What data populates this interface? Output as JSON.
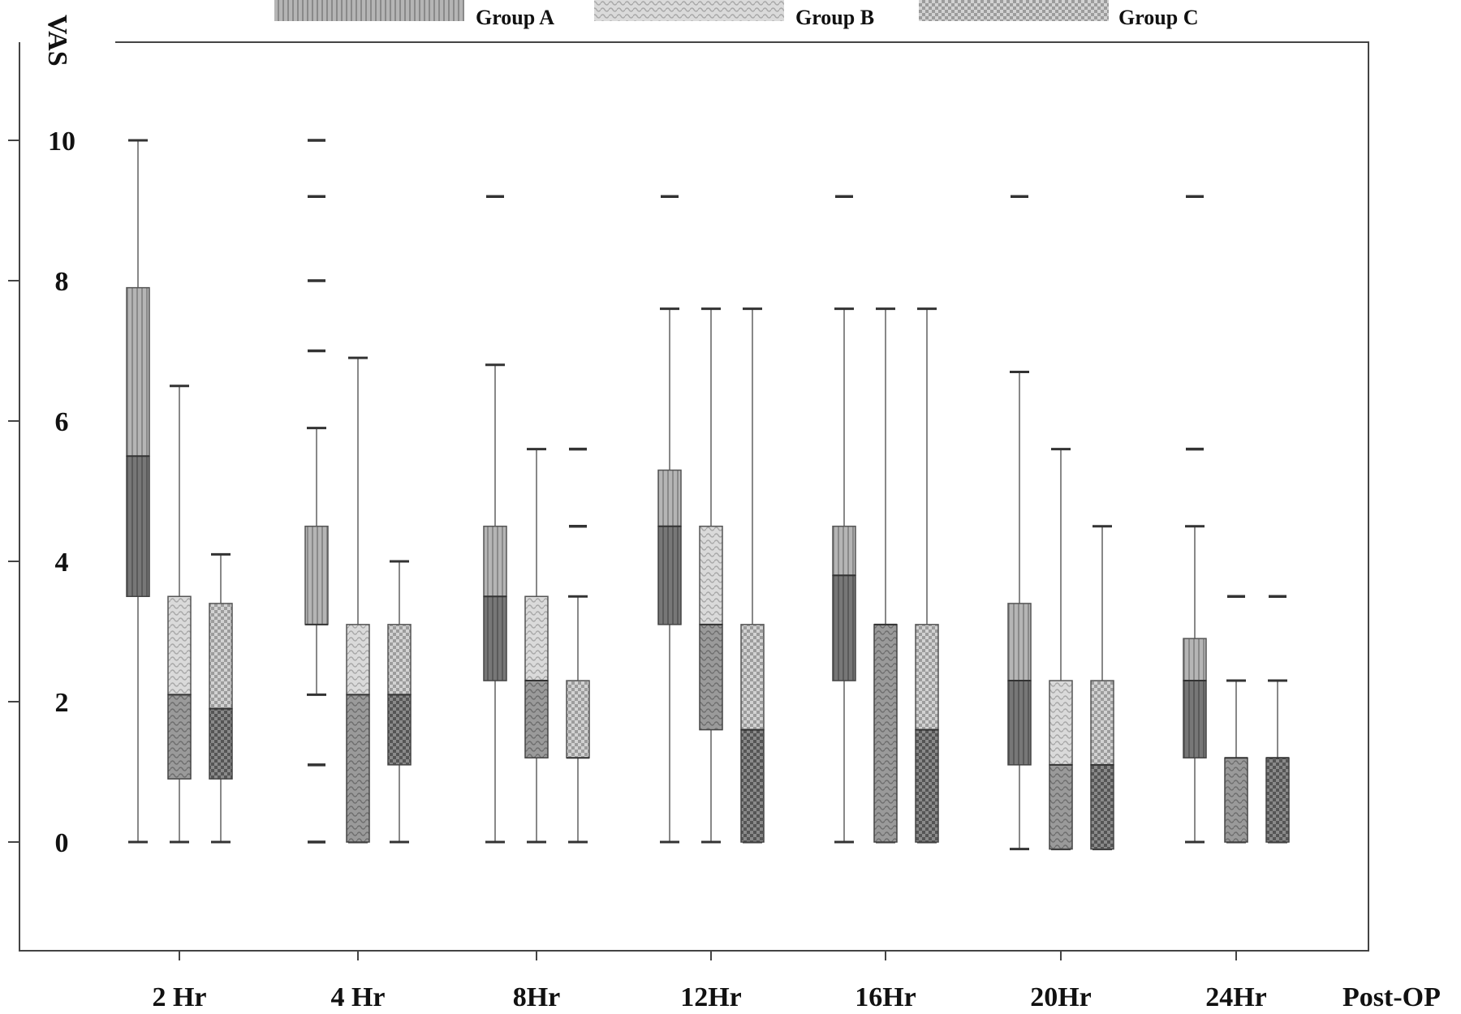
{
  "chart_data": {
    "type": "boxplot",
    "ylabel": "VAS",
    "xlabel": "Post-OP",
    "ylim": [
      -1.4,
      10.9
    ],
    "yticks": [
      0,
      2,
      4,
      6,
      8,
      10
    ],
    "yticklabels": [
      "0",
      "2",
      "4",
      "6",
      "8",
      "10"
    ],
    "categories": [
      "2 Hr",
      "4 Hr",
      "8Hr",
      "12Hr",
      "16Hr",
      "20Hr",
      "24Hr"
    ],
    "legend_position": "top",
    "series": [
      {
        "name": "Group A",
        "color": "#9a9a9a",
        "median_color": "#6e6e6e",
        "pattern": "vertical-stripes",
        "boxes": [
          {
            "min": 0,
            "q1": 3.5,
            "median": 5.5,
            "q3": 7.9,
            "max": 10,
            "outliers": []
          },
          {
            "min": 2.1,
            "q1": 3.1,
            "median": 3.1,
            "q3": 4.5,
            "max": 5.9,
            "outliers": [
              0,
              1.1,
              7.0,
              8.0,
              9.2,
              10.0
            ]
          },
          {
            "min": 0,
            "q1": 2.3,
            "median": 3.5,
            "q3": 4.5,
            "max": 6.8,
            "outliers": [
              9.2
            ]
          },
          {
            "min": 0,
            "q1": 3.1,
            "median": 4.5,
            "q3": 5.3,
            "max": 7.6,
            "outliers": [
              9.2
            ]
          },
          {
            "min": 0,
            "q1": 2.3,
            "median": 3.8,
            "q3": 4.5,
            "max": 7.6,
            "outliers": [
              9.2
            ]
          },
          {
            "min": -0.1,
            "q1": 1.1,
            "median": 2.3,
            "q3": 3.4,
            "max": 6.7,
            "outliers": [
              9.2
            ]
          },
          {
            "min": 0,
            "q1": 1.2,
            "median": 2.3,
            "q3": 2.9,
            "max": 4.5,
            "outliers": [
              5.6,
              9.2
            ]
          }
        ]
      },
      {
        "name": "Group B",
        "color": "#c4c4c4",
        "median_color": "#8c8c8c",
        "pattern": "wave",
        "boxes": [
          {
            "min": 0,
            "q1": 0.9,
            "median": 2.1,
            "q3": 3.5,
            "max": 6.5,
            "outliers": []
          },
          {
            "min": 0,
            "q1": 0,
            "median": 2.1,
            "q3": 3.1,
            "max": 6.9,
            "outliers": []
          },
          {
            "min": 0,
            "q1": 1.2,
            "median": 2.3,
            "q3": 3.5,
            "max": 5.6,
            "outliers": []
          },
          {
            "min": 0,
            "q1": 1.6,
            "median": 3.1,
            "q3": 4.5,
            "max": 7.6,
            "outliers": []
          },
          {
            "min": 0,
            "q1": 0,
            "median": 3.1,
            "q3": 3.1,
            "max": 7.6,
            "outliers": []
          },
          {
            "min": -0.1,
            "q1": -0.1,
            "median": 1.1,
            "q3": 2.3,
            "max": 5.6,
            "outliers": []
          },
          {
            "min": 0,
            "q1": 0,
            "median": 1.2,
            "q3": 1.2,
            "max": 2.3,
            "outliers": [
              3.5
            ]
          }
        ]
      },
      {
        "name": "Group C",
        "color": "#b0b0b0",
        "median_color": "#777777",
        "pattern": "checker",
        "boxes": [
          {
            "min": 0,
            "q1": 0.9,
            "median": 1.9,
            "q3": 3.4,
            "max": 4.1,
            "outliers": []
          },
          {
            "min": 0,
            "q1": 1.1,
            "median": 2.1,
            "q3": 3.1,
            "max": 4.0,
            "outliers": []
          },
          {
            "min": 0,
            "q1": 1.2,
            "median": 1.2,
            "q3": 2.3,
            "max": 3.5,
            "outliers": [
              4.5,
              5.6
            ]
          },
          {
            "min": 0,
            "q1": 0,
            "median": 1.6,
            "q3": 3.1,
            "max": 7.6,
            "outliers": []
          },
          {
            "min": 0,
            "q1": 0,
            "median": 1.6,
            "q3": 3.1,
            "max": 7.6,
            "outliers": []
          },
          {
            "min": -0.1,
            "q1": -0.1,
            "median": 1.1,
            "q3": 2.3,
            "max": 4.5,
            "outliers": []
          },
          {
            "min": 0,
            "q1": 0,
            "median": 1.2,
            "q3": 1.2,
            "max": 2.3,
            "outliers": [
              3.5
            ]
          }
        ]
      }
    ]
  }
}
